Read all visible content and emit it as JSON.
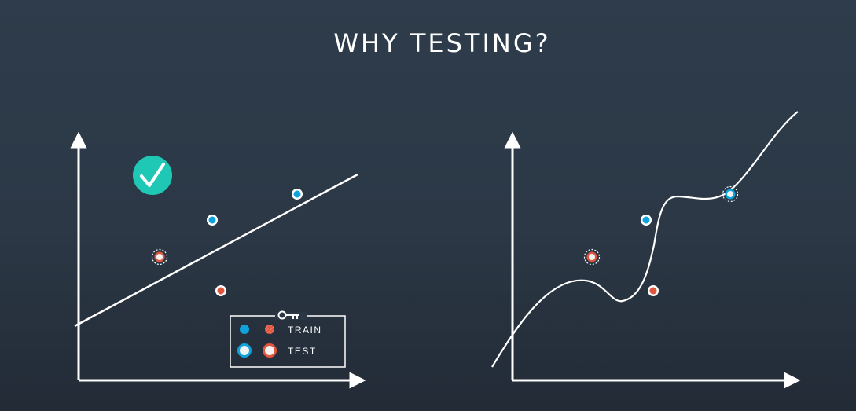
{
  "title": "WHY TESTING?",
  "legend": {
    "train_label": "TRAIN",
    "test_label": "TEST",
    "key_icon": "key-icon"
  },
  "colors": {
    "background": "#2c3846",
    "axis": "#ffffff",
    "fit_line": "#ffffff",
    "train_blue": "#0fa3dc",
    "train_red": "#e0553d",
    "test_fill": "#f2f2f2",
    "check_badge": "#1ec8b4"
  },
  "left_panel": {
    "model": "linear-fit",
    "status_icon": "checkmark-icon",
    "points": [
      {
        "id": "blue-train-1",
        "kind": "train",
        "color": "blue"
      },
      {
        "id": "blue-train-2",
        "kind": "train",
        "color": "blue"
      },
      {
        "id": "red-test-1",
        "kind": "test",
        "color": "red"
      },
      {
        "id": "red-train-1",
        "kind": "train",
        "color": "red"
      }
    ]
  },
  "right_panel": {
    "model": "overfit-curve",
    "points": [
      {
        "id": "blue-train-1",
        "kind": "train",
        "color": "blue"
      },
      {
        "id": "blue-test-1",
        "kind": "test",
        "color": "blue"
      },
      {
        "id": "red-test-1",
        "kind": "test",
        "color": "red"
      },
      {
        "id": "red-train-1",
        "kind": "train",
        "color": "red"
      }
    ]
  }
}
